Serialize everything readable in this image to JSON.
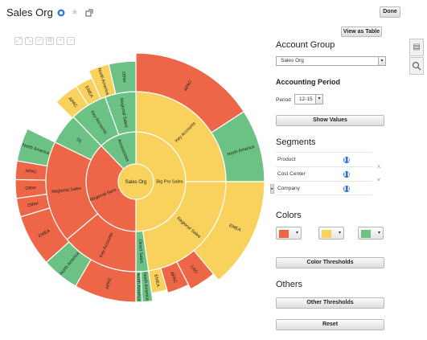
{
  "header": {
    "title": "Sales Org",
    "done_label": "Done"
  },
  "icons": {
    "info": "info-icon",
    "favorite": "star-icon",
    "share": "share-icon"
  },
  "toolbar": {
    "items": [
      "expand-icon",
      "collapse-icon",
      "check-icon",
      "settings-icon",
      "zoom-in-icon",
      "zoom-out-icon"
    ]
  },
  "sunburst": {
    "center_label": "Sales Org",
    "ring1": [
      {
        "label": "Big Pro Sales",
        "color": "#f8d25c"
      },
      {
        "label": "Regional Sem...",
        "color": "#ed6647"
      },
      {
        "label": "Accessories",
        "color": "#6cc285"
      }
    ],
    "ring2": [
      {
        "label": "Key Accounts",
        "color": "#f8d25c"
      },
      {
        "label": "Regional Sales",
        "color": "#f8d25c"
      },
      {
        "label": "Direct Sales",
        "color": "#6cc285"
      },
      {
        "label": "Key Accounts",
        "color": "#ed6647"
      },
      {
        "label": "Regional Sales",
        "color": "#ed6647"
      },
      {
        "label": "DL",
        "color": "#6cc285"
      },
      {
        "label": "Key Accounts",
        "color": "#6cc285"
      },
      {
        "label": "Regional Sales",
        "color": "#6cc285"
      }
    ],
    "ring3": [
      {
        "label": "APAC",
        "color": "#ed6647"
      },
      {
        "label": "North America",
        "color": "#6cc285"
      },
      {
        "label": "EMEA",
        "color": "#f8d25c"
      },
      {
        "label": "LAO",
        "color": "#ed6647"
      },
      {
        "label": "APAC",
        "color": "#ed6647"
      },
      {
        "label": "EMEA",
        "color": "#f8d25c"
      },
      {
        "label": "North America",
        "color": "#6cc285"
      },
      {
        "label": "North America",
        "color": "#6cc285"
      },
      {
        "label": "APAC",
        "color": "#ed6647"
      },
      {
        "label": "North America",
        "color": "#6cc285"
      },
      {
        "label": "EMEA",
        "color": "#ed6647"
      },
      {
        "label": "Other",
        "color": "#ed6647"
      },
      {
        "label": "Other",
        "color": "#ed6647"
      },
      {
        "label": "APAC",
        "color": "#ed6647"
      },
      {
        "label": "North America",
        "color": "#6cc285"
      },
      {
        "label": "APAC",
        "color": "#f8d25c"
      },
      {
        "label": "EMEA",
        "color": "#f8d25c"
      },
      {
        "label": "North America",
        "color": "#f8d25c"
      },
      {
        "label": "Other",
        "color": "#6cc285"
      }
    ]
  },
  "panel": {
    "view_table_label": "View as Table",
    "account_group": {
      "heading": "Account Group",
      "value": "Sales Org"
    },
    "accounting_period": {
      "heading": "Accounting Period",
      "period_label": "Period",
      "period_value": "12-15"
    },
    "show_values_label": "Show Values",
    "segments": {
      "heading": "Segments",
      "items": [
        "Product",
        "Cost Center",
        "Company"
      ]
    },
    "colors": {
      "heading": "Colors",
      "swatches": [
        "#ed6647",
        "#f8d25c",
        "#6cc285"
      ]
    },
    "color_thresholds_label": "Color Thresholds",
    "others": {
      "heading": "Others",
      "other_thresholds_label": "Other Thresholds",
      "reset_label": "Reset"
    }
  },
  "rail": [
    "document-icon",
    "search-icon"
  ]
}
